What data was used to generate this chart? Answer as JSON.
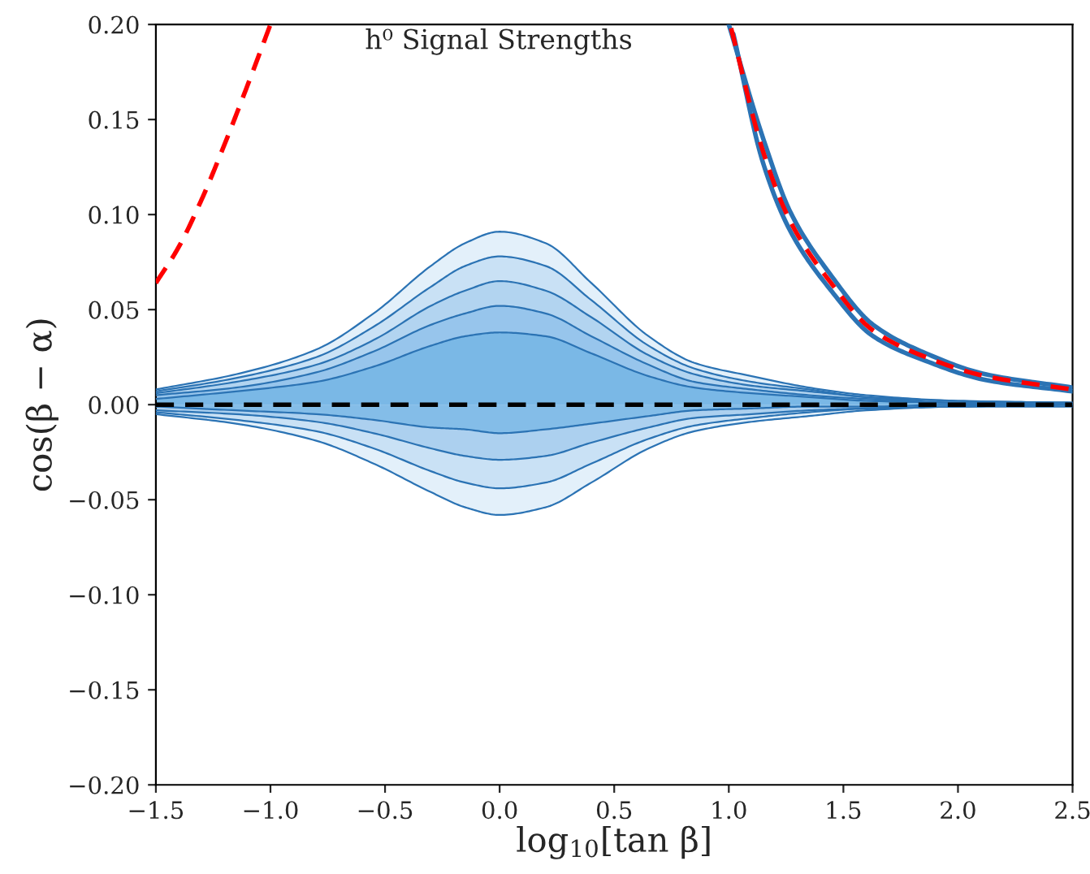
{
  "chart_data": {
    "type": "area",
    "title": "h⁰ Signal Strengths",
    "xlabel": "log$_{10}$[tan β]",
    "ylabel": "cos(β − α)",
    "x": [
      -1.5,
      -1.15,
      -0.8,
      -0.55,
      -0.3,
      -0.15,
      0.0,
      0.2,
      0.4,
      0.65,
      0.85,
      1.1,
      1.35,
      1.6,
      2.0,
      2.5
    ],
    "series": [
      {
        "color": "#e3f0fa",
        "values": [
          0.008,
          0.016,
          0.029,
          0.048,
          0.073,
          0.085,
          0.091,
          0.085,
          0.064,
          0.036,
          0.022,
          0.015,
          0.009,
          0.005,
          0.002,
          0.001
        ]
      },
      {
        "color": "#c9e1f5",
        "values": [
          0.007,
          0.014,
          0.025,
          0.041,
          0.062,
          0.073,
          0.078,
          0.073,
          0.055,
          0.031,
          0.019,
          0.012,
          0.008,
          0.004,
          0.002,
          0.001
        ]
      },
      {
        "color": "#b2d4f0",
        "values": [
          0.006,
          0.012,
          0.021,
          0.034,
          0.052,
          0.06,
          0.065,
          0.06,
          0.046,
          0.026,
          0.016,
          0.01,
          0.007,
          0.004,
          0.001,
          0.001
        ]
      },
      {
        "color": "#97c5ec",
        "values": [
          0.005,
          0.009,
          0.017,
          0.028,
          0.042,
          0.048,
          0.052,
          0.048,
          0.036,
          0.021,
          0.012,
          0.008,
          0.005,
          0.003,
          0.001,
          0.001
        ]
      },
      {
        "color": "#7ab8e6",
        "values": [
          0.003,
          0.007,
          0.012,
          0.02,
          0.031,
          0.036,
          0.038,
          0.036,
          0.027,
          0.015,
          0.009,
          0.006,
          0.004,
          0.002,
          0.001,
          0
        ]
      },
      {
        "color": "#e3f0fa",
        "values": [
          -0.005,
          -0.01,
          -0.019,
          -0.031,
          -0.046,
          -0.054,
          -0.058,
          -0.054,
          -0.041,
          -0.023,
          -0.014,
          -0.009,
          -0.006,
          -0.003,
          -0.001,
          -0.001
        ]
      },
      {
        "color": "#c9e1f5",
        "values": [
          -0.004,
          -0.008,
          -0.014,
          -0.023,
          -0.035,
          -0.041,
          -0.044,
          -0.041,
          -0.031,
          -0.018,
          -0.011,
          -0.007,
          -0.004,
          -0.002,
          -0.001,
          0
        ]
      },
      {
        "color": "#acd0ef",
        "values": [
          -0.003,
          -0.005,
          -0.009,
          -0.015,
          -0.023,
          -0.027,
          -0.029,
          -0.027,
          -0.02,
          -0.012,
          -0.007,
          -0.005,
          -0.003,
          -0.002,
          -0.001,
          0
        ]
      },
      {
        "color": "#84bde8",
        "values": [
          -0.001,
          -0.003,
          -0.005,
          -0.008,
          -0.012,
          -0.013,
          -0.015,
          -0.013,
          -0.01,
          -0.006,
          -0.003,
          -0.002,
          -0.001,
          -0.001,
          0,
          0
        ]
      },
      {
        "type": "line",
        "color": "#2b73b4",
        "x": [
          1.0,
          1.15,
          1.27,
          1.44,
          1.63,
          1.86,
          2.12,
          2.5
        ],
        "values": [
          0.2,
          0.14,
          0.101,
          0.069,
          0.042,
          0.027,
          0.016,
          0.009
        ]
      },
      {
        "type": "line",
        "color": "#2b73b4",
        "x": [
          1.02,
          1.15,
          1.27,
          1.44,
          1.63,
          1.86,
          2.12,
          2.5
        ],
        "values": [
          0.195,
          0.127,
          0.091,
          0.061,
          0.036,
          0.023,
          0.013,
          0.007
        ]
      },
      {
        "type": "line",
        "color": "#ff0000",
        "line_style": "dashed",
        "x": [
          -1.5,
          -1.4,
          -1.3,
          -1.2,
          -1.1,
          -1.0
        ],
        "values": [
          0.064,
          0.083,
          0.108,
          0.137,
          0.168,
          0.2
        ]
      },
      {
        "type": "line",
        "color": "#ff0000",
        "line_style": "dashed",
        "x": [
          1.01,
          1.15,
          1.27,
          1.44,
          1.63,
          1.86,
          2.12,
          2.5
        ],
        "values": [
          0.198,
          0.133,
          0.096,
          0.065,
          0.039,
          0.025,
          0.015,
          0.008
        ]
      }
    ],
    "ref_lines": [
      {
        "axis": "y",
        "value": 0,
        "color": "#000000",
        "line_style": "dashed"
      }
    ],
    "xlim": [
      -1.5,
      2.5
    ],
    "ylim": [
      -0.2,
      0.2
    ],
    "xticks": [
      {
        "value": -1.5,
        "label": "−1.5"
      },
      {
        "value": -1.0,
        "label": "−1.0"
      },
      {
        "value": -0.5,
        "label": "−0.5"
      },
      {
        "value": 0.0,
        "label": "0.0"
      },
      {
        "value": 0.5,
        "label": "0.5"
      },
      {
        "value": 1.0,
        "label": "1.0"
      },
      {
        "value": 1.5,
        "label": "1.5"
      },
      {
        "value": 2.0,
        "label": "2.0"
      },
      {
        "value": 2.5,
        "label": "2.5"
      }
    ],
    "yticks": [
      {
        "value": -0.2,
        "label": "−0.20"
      },
      {
        "value": -0.15,
        "label": "−0.15"
      },
      {
        "value": -0.1,
        "label": "−0.10"
      },
      {
        "value": -0.05,
        "label": "−0.05"
      },
      {
        "value": 0.0,
        "label": "0.00"
      },
      {
        "value": 0.05,
        "label": "0.05"
      },
      {
        "value": 0.1,
        "label": "0.10"
      },
      {
        "value": 0.15,
        "label": "0.15"
      },
      {
        "value": 0.2,
        "label": "0.20"
      }
    ]
  }
}
